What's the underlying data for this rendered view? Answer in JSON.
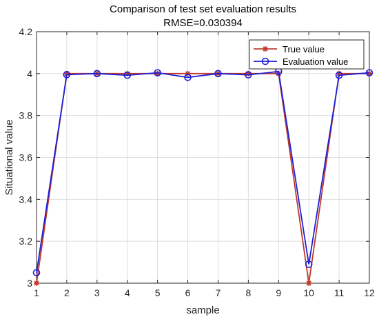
{
  "chart_data": {
    "type": "line",
    "title": "Comparison of test set evaluation results",
    "subtitle": "RMSE=0.030394",
    "xlabel": "sample",
    "ylabel": "Situational value",
    "x": [
      1,
      2,
      3,
      4,
      5,
      6,
      7,
      8,
      9,
      10,
      11,
      12
    ],
    "xlim": [
      1,
      12
    ],
    "ylim": [
      3,
      4.2
    ],
    "xticks": [
      "1",
      "2",
      "3",
      "4",
      "5",
      "6",
      "7",
      "8",
      "9",
      "10",
      "11",
      "12"
    ],
    "yticks": [
      "3",
      "3.2",
      "3.4",
      "3.6",
      "3.8",
      "4",
      "4.2"
    ],
    "grid": true,
    "legend_position": "top-right",
    "series": [
      {
        "name": "True value",
        "color": "#c0392b",
        "marker": "asterisk",
        "values": [
          3,
          4,
          4,
          4,
          4,
          4,
          4,
          4,
          4,
          3,
          4,
          4
        ]
      },
      {
        "name": "Evaluation value",
        "color": "#1f1fd6",
        "marker": "circle",
        "values": [
          3.05,
          3.995,
          4.0,
          3.992,
          4.004,
          3.982,
          4.0,
          3.994,
          4.01,
          3.09,
          3.992,
          4.004
        ]
      }
    ]
  }
}
